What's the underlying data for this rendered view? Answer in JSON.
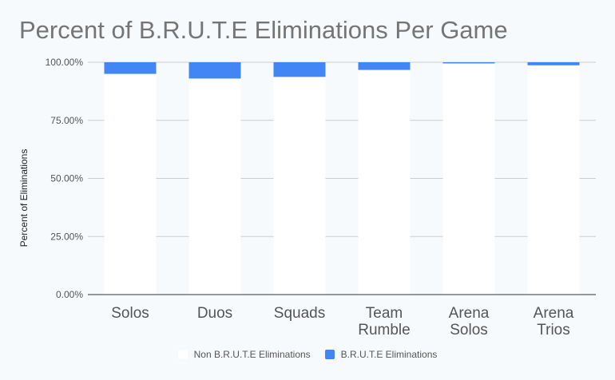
{
  "chart_data": {
    "type": "bar",
    "title": "Percent of B.R.U.T.E Eliminations Per Game",
    "ylabel": "Percent of Eliminations",
    "xlabel": "",
    "categories": [
      [
        "Solos"
      ],
      [
        "Duos"
      ],
      [
        "Squads"
      ],
      [
        "Team",
        "Rumble"
      ],
      [
        "Arena",
        "Solos"
      ],
      [
        "Arena",
        "Trios"
      ]
    ],
    "series": [
      {
        "name": "Non B.R.U.T.E Eliminations",
        "color": "#ffffff",
        "values": [
          95.0,
          93.0,
          93.7,
          96.7,
          99.5,
          98.7
        ]
      },
      {
        "name": "B.R.U.T.E Eliminations",
        "color": "#4285f4",
        "values": [
          5.0,
          7.0,
          6.3,
          3.3,
          0.5,
          1.3
        ]
      }
    ],
    "stacked": true,
    "ylim": [
      0,
      100
    ],
    "y_ticks": [
      "0.00%",
      "25.00%",
      "50.00%",
      "75.00%",
      "100.00%"
    ],
    "grid": true,
    "legend_position": "bottom"
  }
}
